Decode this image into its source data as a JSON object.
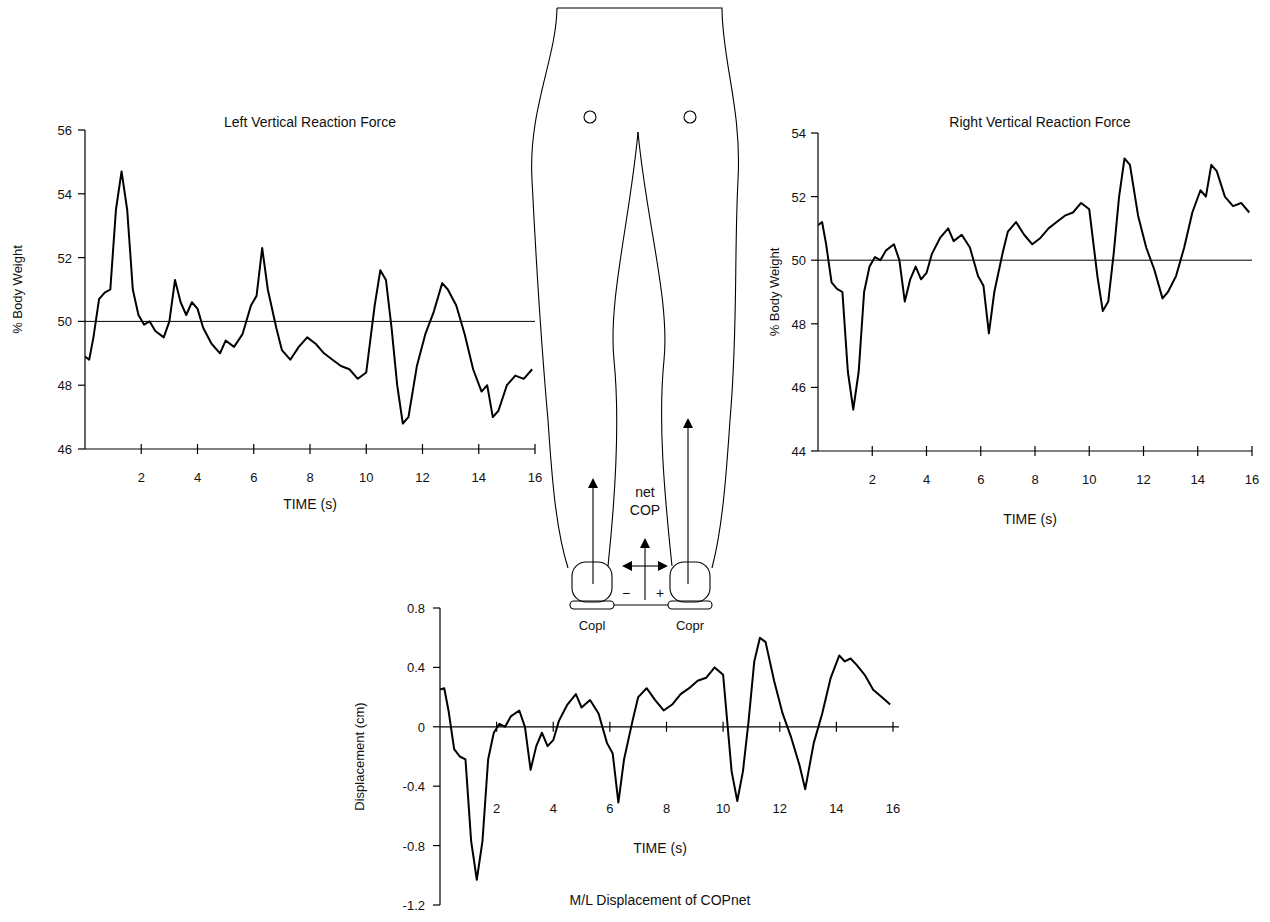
{
  "chart_data": [
    {
      "type": "line",
      "title": "Left Vertical Reaction Force",
      "xlabel": "TIME (s)",
      "ylabel": "% Body Weight",
      "color": "#000000",
      "x": [
        0,
        0.15,
        0.3,
        0.5,
        0.7,
        0.9,
        1.1,
        1.3,
        1.5,
        1.7,
        1.9,
        2.1,
        2.3,
        2.5,
        2.8,
        3.0,
        3.2,
        3.4,
        3.6,
        3.8,
        4.0,
        4.2,
        4.5,
        4.8,
        5.0,
        5.3,
        5.6,
        5.9,
        6.1,
        6.3,
        6.5,
        6.8,
        7.0,
        7.3,
        7.6,
        7.9,
        8.2,
        8.5,
        8.8,
        9.1,
        9.4,
        9.7,
        10.0,
        10.3,
        10.5,
        10.7,
        10.9,
        11.1,
        11.3,
        11.5,
        11.8,
        12.1,
        12.4,
        12.7,
        12.9,
        13.2,
        13.5,
        13.8,
        14.1,
        14.3,
        14.5,
        14.7,
        15.0,
        15.3,
        15.6,
        15.9
      ],
      "values": [
        48.9,
        48.8,
        49.5,
        50.7,
        50.9,
        51.0,
        53.5,
        54.7,
        53.5,
        51.0,
        50.2,
        49.9,
        50.0,
        49.7,
        49.5,
        50.0,
        51.3,
        50.6,
        50.2,
        50.6,
        50.4,
        49.8,
        49.3,
        49.0,
        49.4,
        49.2,
        49.6,
        50.5,
        50.8,
        52.3,
        51.0,
        49.8,
        49.1,
        48.8,
        49.2,
        49.5,
        49.3,
        49.0,
        48.8,
        48.6,
        48.5,
        48.2,
        48.4,
        50.5,
        51.6,
        51.3,
        49.8,
        48.0,
        46.8,
        47.0,
        48.6,
        49.6,
        50.3,
        51.2,
        51.0,
        50.5,
        49.6,
        48.5,
        47.8,
        48.0,
        47.0,
        47.2,
        48.0,
        48.3,
        48.2,
        48.5
      ],
      "xlim": [
        0,
        16
      ],
      "xticks": [
        2,
        4,
        6,
        8,
        10,
        12,
        14,
        16
      ],
      "ylim": [
        46,
        56
      ],
      "yticks": [
        46,
        48,
        50,
        52,
        54,
        56
      ],
      "hline": 50
    },
    {
      "type": "line",
      "title": "Right Vertical Reaction Force",
      "xlabel": "TIME (s)",
      "ylabel": "% Body Weight",
      "color": "#000000",
      "x": [
        0,
        0.15,
        0.3,
        0.5,
        0.7,
        0.9,
        1.1,
        1.3,
        1.5,
        1.7,
        1.9,
        2.1,
        2.3,
        2.5,
        2.8,
        3.0,
        3.2,
        3.4,
        3.6,
        3.8,
        4.0,
        4.2,
        4.5,
        4.8,
        5.0,
        5.3,
        5.6,
        5.9,
        6.1,
        6.3,
        6.5,
        6.8,
        7.0,
        7.3,
        7.6,
        7.9,
        8.2,
        8.5,
        8.8,
        9.1,
        9.4,
        9.7,
        10.0,
        10.3,
        10.5,
        10.7,
        10.9,
        11.1,
        11.3,
        11.5,
        11.8,
        12.1,
        12.4,
        12.7,
        12.9,
        13.2,
        13.5,
        13.8,
        14.1,
        14.3,
        14.5,
        14.7,
        15.0,
        15.3,
        15.6,
        15.9
      ],
      "values": [
        51.1,
        51.2,
        50.5,
        49.3,
        49.1,
        49.0,
        46.5,
        45.3,
        46.5,
        49.0,
        49.8,
        50.1,
        50.0,
        50.3,
        50.5,
        50.0,
        48.7,
        49.4,
        49.8,
        49.4,
        49.6,
        50.2,
        50.7,
        51.0,
        50.6,
        50.8,
        50.4,
        49.5,
        49.2,
        47.7,
        49.0,
        50.2,
        50.9,
        51.2,
        50.8,
        50.5,
        50.7,
        51.0,
        51.2,
        51.4,
        51.5,
        51.8,
        51.6,
        49.5,
        48.4,
        48.7,
        50.2,
        52.0,
        53.2,
        53.0,
        51.4,
        50.4,
        49.7,
        48.8,
        49.0,
        49.5,
        50.4,
        51.5,
        52.2,
        52.0,
        53.0,
        52.8,
        52.0,
        51.7,
        51.8,
        51.5
      ],
      "xlim": [
        0,
        16
      ],
      "xticks": [
        2,
        4,
        6,
        8,
        10,
        12,
        14,
        16
      ],
      "ylim": [
        44,
        54
      ],
      "yticks": [
        44,
        46,
        48,
        50,
        52,
        54
      ],
      "hline": 50
    },
    {
      "type": "line",
      "title": "M/L Displacement of COPnet",
      "xlabel": "TIME (s)",
      "ylabel": "Displacement (cm)",
      "color": "#000000",
      "x": [
        0,
        0.15,
        0.3,
        0.5,
        0.7,
        0.9,
        1.1,
        1.3,
        1.5,
        1.7,
        1.9,
        2.1,
        2.3,
        2.5,
        2.8,
        3.0,
        3.2,
        3.4,
        3.6,
        3.8,
        4.0,
        4.2,
        4.5,
        4.8,
        5.0,
        5.3,
        5.6,
        5.9,
        6.1,
        6.3,
        6.5,
        6.8,
        7.0,
        7.3,
        7.6,
        7.9,
        8.2,
        8.5,
        8.8,
        9.1,
        9.4,
        9.7,
        10.0,
        10.3,
        10.5,
        10.7,
        10.9,
        11.1,
        11.3,
        11.5,
        11.8,
        12.1,
        12.4,
        12.7,
        12.9,
        13.2,
        13.5,
        13.8,
        14.1,
        14.3,
        14.5,
        14.7,
        15.0,
        15.3,
        15.6,
        15.9
      ],
      "values": [
        0.25,
        0.26,
        0.11,
        -0.15,
        -0.2,
        -0.22,
        -0.77,
        -1.03,
        -0.77,
        -0.22,
        -0.04,
        0.02,
        0.0,
        0.07,
        0.11,
        0.0,
        -0.29,
        -0.13,
        -0.04,
        -0.13,
        -0.09,
        0.04,
        0.15,
        0.22,
        0.13,
        0.18,
        0.09,
        -0.11,
        -0.18,
        -0.51,
        -0.22,
        0.04,
        0.2,
        0.26,
        0.18,
        0.11,
        0.15,
        0.22,
        0.26,
        0.31,
        0.33,
        0.4,
        0.35,
        -0.3,
        -0.5,
        -0.3,
        0.04,
        0.44,
        0.6,
        0.57,
        0.31,
        0.09,
        -0.07,
        -0.26,
        -0.42,
        -0.11,
        0.09,
        0.33,
        0.48,
        0.44,
        0.46,
        0.42,
        0.35,
        0.25,
        0.2,
        0.15
      ],
      "xlim": [
        0,
        16
      ],
      "xticks": [
        2,
        4,
        6,
        8,
        10,
        12,
        14,
        16
      ],
      "ylim": [
        -1.2,
        0.8
      ],
      "yticks": [
        -1.2,
        -0.8,
        -0.4,
        0,
        0.4,
        0.8
      ]
    }
  ],
  "diagram": {
    "net": "net",
    "cop": "COP",
    "minus": "−",
    "plus": "+",
    "left_foot": "Copl",
    "right_foot": "Copr"
  }
}
